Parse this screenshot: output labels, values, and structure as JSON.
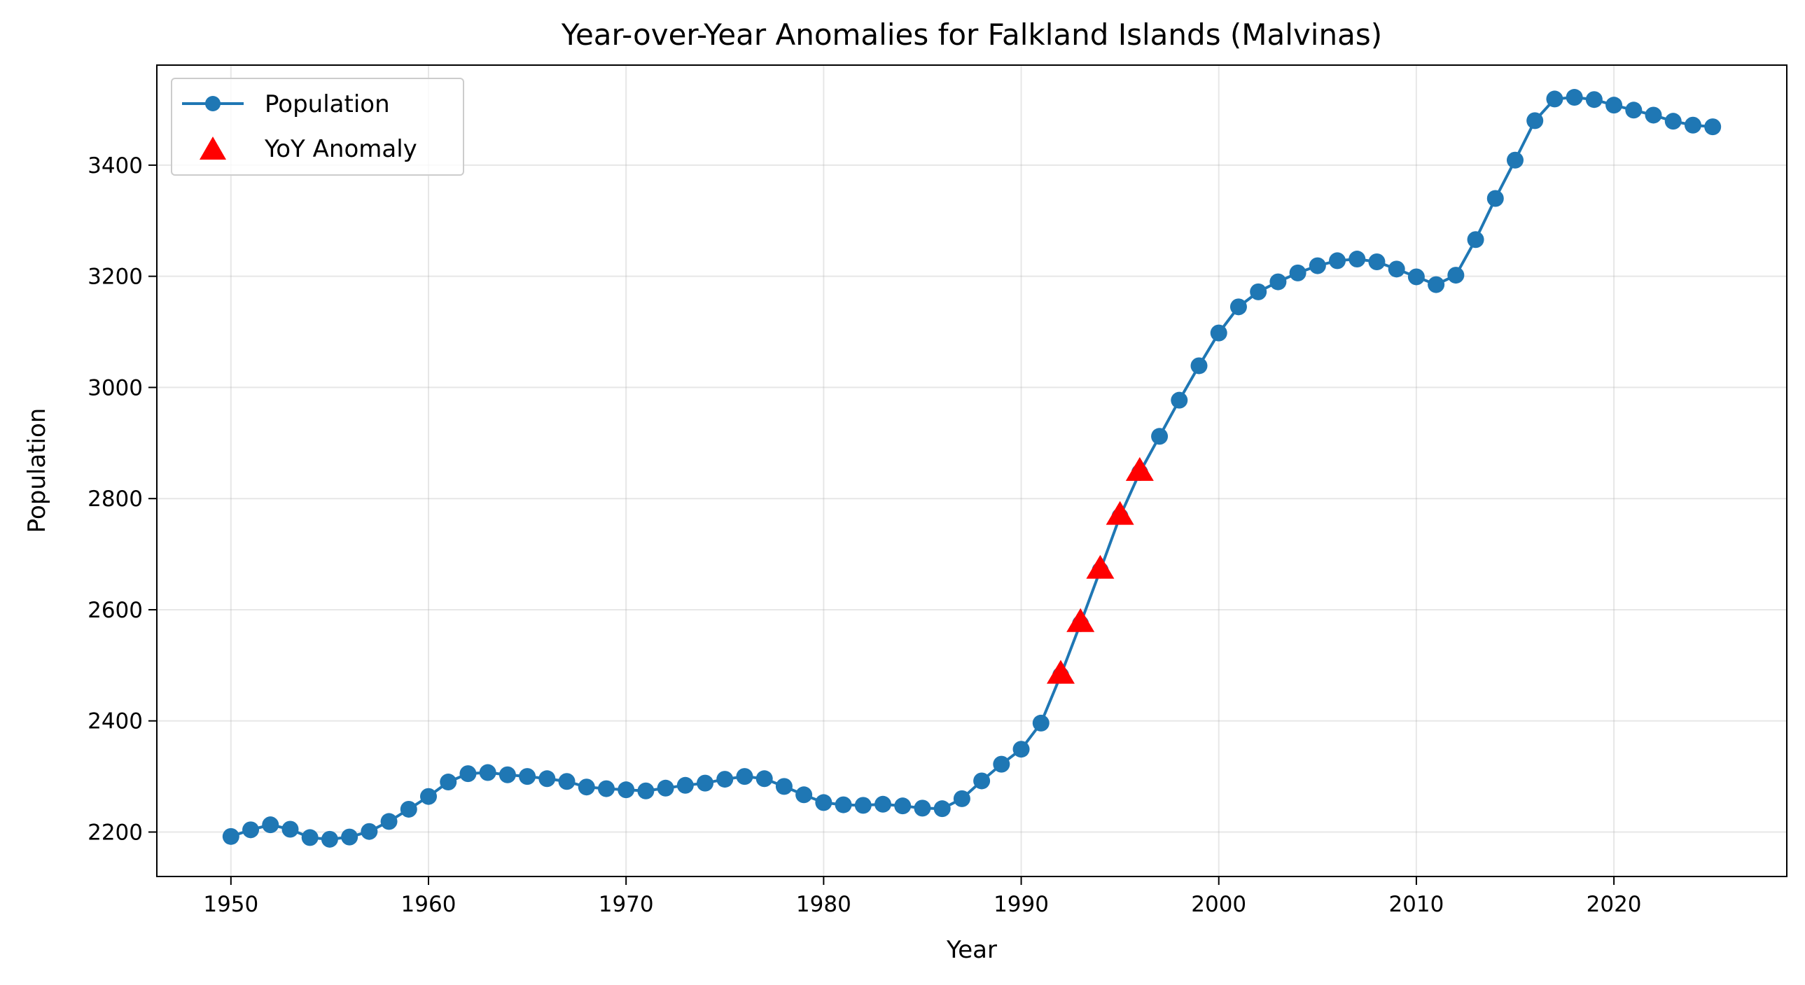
{
  "chart_data": {
    "type": "line",
    "title": "Year-over-Year Anomalies for Falkland Islands (Malvinas)",
    "xlabel": "Year",
    "ylabel": "Population",
    "xlim": [
      1946.25,
      2028.75
    ],
    "ylim": [
      2120,
      3580
    ],
    "xticks": [
      1950,
      1960,
      1970,
      1980,
      1990,
      2000,
      2010,
      2020
    ],
    "yticks": [
      2200,
      2400,
      2600,
      2800,
      3000,
      3200,
      3400
    ],
    "grid": true,
    "legend_position": "top-left",
    "series": [
      {
        "name": "Population",
        "color": "#1f77b4",
        "marker": "circle",
        "x": [
          1950,
          1951,
          1952,
          1953,
          1954,
          1955,
          1956,
          1957,
          1958,
          1959,
          1960,
          1961,
          1962,
          1963,
          1964,
          1965,
          1966,
          1967,
          1968,
          1969,
          1970,
          1971,
          1972,
          1973,
          1974,
          1975,
          1976,
          1977,
          1978,
          1979,
          1980,
          1981,
          1982,
          1983,
          1984,
          1985,
          1986,
          1987,
          1988,
          1989,
          1990,
          1991,
          1992,
          1993,
          1994,
          1995,
          1996,
          1997,
          1998,
          1999,
          2000,
          2001,
          2002,
          2003,
          2004,
          2005,
          2006,
          2007,
          2008,
          2009,
          2010,
          2011,
          2012,
          2013,
          2014,
          2015,
          2016,
          2017,
          2018,
          2019,
          2020,
          2021,
          2022,
          2023,
          2024,
          2025
        ],
        "values": [
          2192,
          2204,
          2213,
          2205,
          2190,
          2187,
          2191,
          2201,
          2219,
          2241,
          2264,
          2290,
          2305,
          2307,
          2303,
          2300,
          2296,
          2291,
          2281,
          2278,
          2276,
          2274,
          2279,
          2284,
          2288,
          2295,
          2300,
          2296,
          2282,
          2267,
          2253,
          2249,
          2248,
          2250,
          2247,
          2243,
          2242,
          2260,
          2292,
          2322,
          2349,
          2396,
          2482,
          2575,
          2671,
          2768,
          2847,
          2912,
          2977,
          3039,
          3098,
          3145,
          3172,
          3190,
          3206,
          3219,
          3228,
          3231,
          3226,
          3213,
          3199,
          3185,
          3202,
          3266,
          3340,
          3409,
          3480,
          3519,
          3522,
          3518,
          3508,
          3499,
          3490,
          3479,
          3472,
          3469
        ]
      },
      {
        "name": "YoY Anomaly",
        "color": "#ff0000",
        "marker": "triangle",
        "x": [
          1992,
          1993,
          1994,
          1995,
          1996
        ],
        "values": [
          2482,
          2575,
          2671,
          2768,
          2847
        ]
      }
    ]
  }
}
